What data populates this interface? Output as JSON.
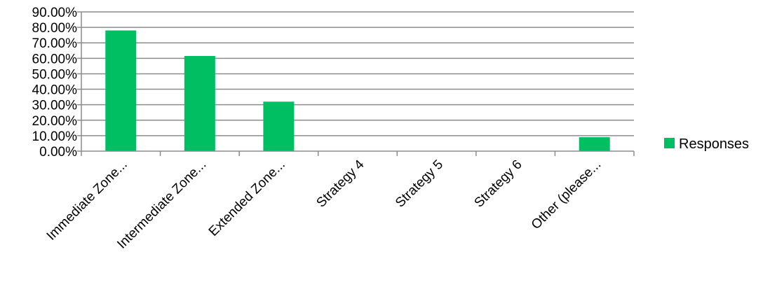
{
  "chart_data": {
    "type": "bar",
    "categories": [
      "Immediate Zone...",
      "Intermediate Zone...",
      "Extended Zone...",
      "Strategy 4",
      "Strategy 5",
      "Strategy 6",
      "Other (please..."
    ],
    "series": [
      {
        "name": "Responses",
        "color": "#00bf63",
        "values": [
          78.0,
          61.5,
          32.0,
          0,
          0,
          0,
          9.0
        ]
      }
    ],
    "y_ticks": [
      "0.00%",
      "10.00%",
      "20.00%",
      "30.00%",
      "40.00%",
      "50.00%",
      "60.00%",
      "70.00%",
      "80.00%",
      "90.00%"
    ],
    "ylim": [
      0,
      90
    ],
    "grid": true,
    "legend_position": "right",
    "x_tick_rotation": "45 degrees"
  }
}
